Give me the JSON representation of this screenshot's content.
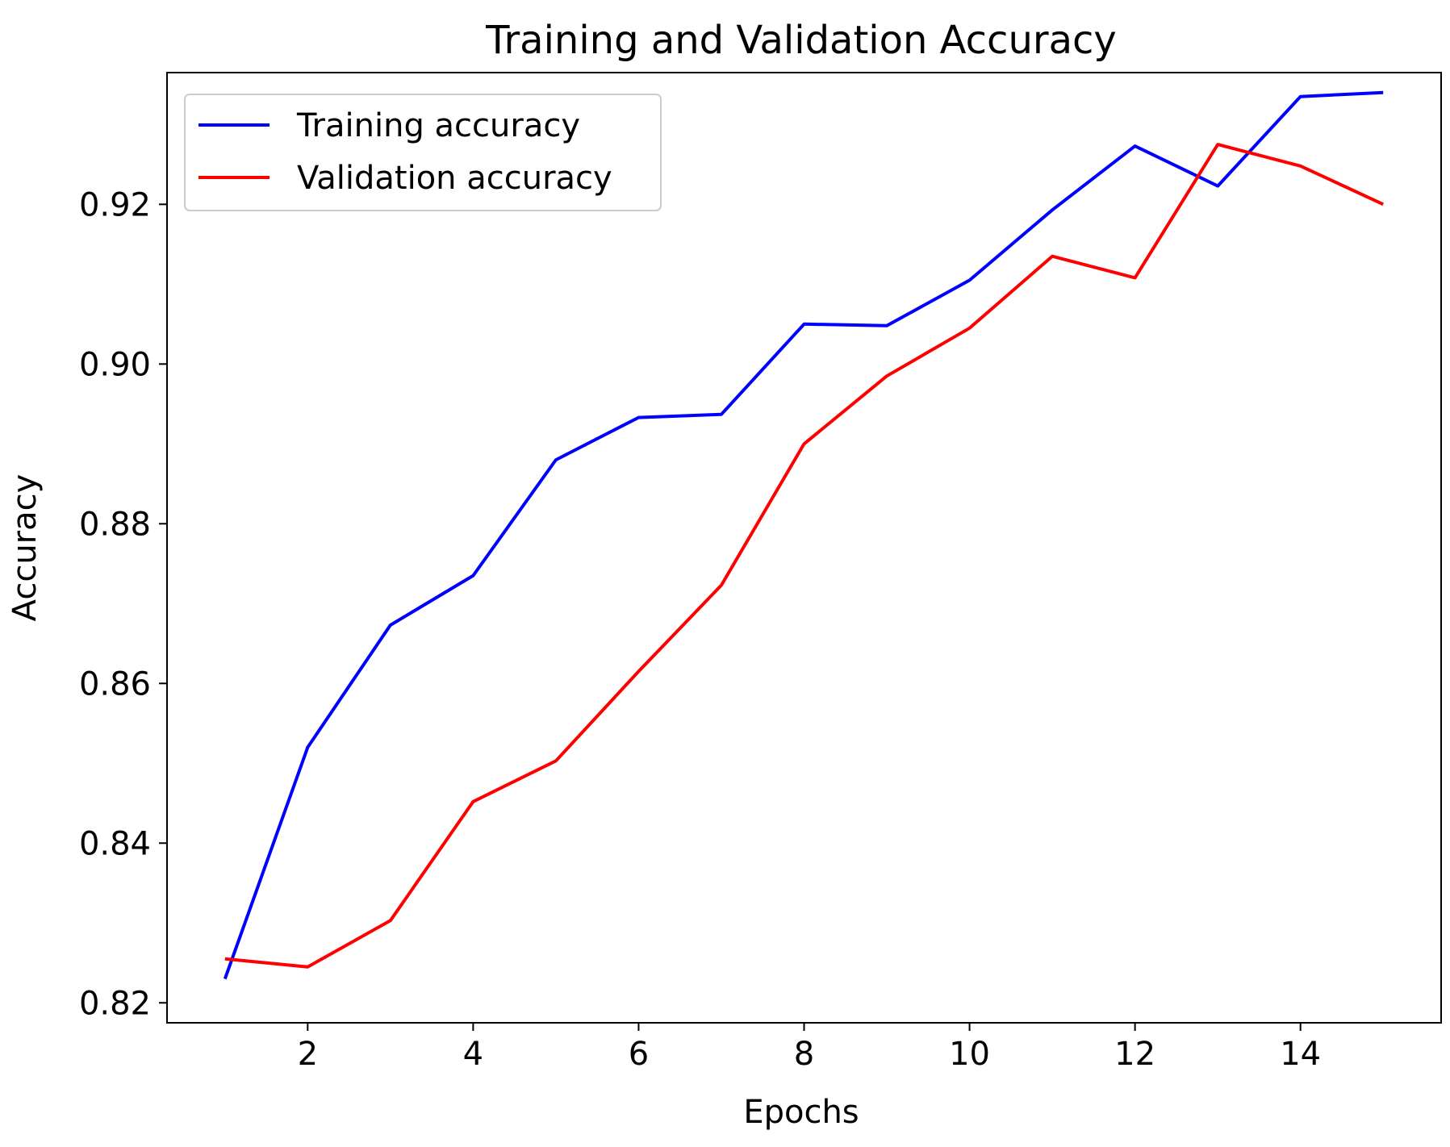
{
  "chart_data": {
    "type": "line",
    "title": "Training and Validation Accuracy",
    "xlabel": "Epochs",
    "ylabel": "Accuracy",
    "xlim": [
      0.3,
      15.7
    ],
    "ylim": [
      0.8175,
      0.9365
    ],
    "xticks": [
      2,
      4,
      6,
      8,
      10,
      12,
      14
    ],
    "xtick_labels": [
      "2",
      "4",
      "6",
      "8",
      "10",
      "12",
      "14"
    ],
    "yticks": [
      0.82,
      0.84,
      0.86,
      0.88,
      0.9,
      0.92
    ],
    "ytick_labels": [
      "0.82",
      "0.84",
      "0.86",
      "0.88",
      "0.90",
      "0.92"
    ],
    "grid": false,
    "legend_position": "top-left",
    "x": [
      1,
      2,
      3,
      4,
      5,
      6,
      7,
      8,
      9,
      10,
      11,
      12,
      13,
      14,
      15
    ],
    "series": [
      {
        "name": "Training accuracy",
        "color": "#0000ff",
        "values": [
          0.823,
          0.852,
          0.8673,
          0.8735,
          0.888,
          0.8933,
          0.8937,
          0.905,
          0.9048,
          0.9105,
          0.9193,
          0.9273,
          0.9223,
          0.9335,
          0.934
        ]
      },
      {
        "name": "Validation accuracy",
        "color": "#ff0000",
        "values": [
          0.8255,
          0.8245,
          0.8303,
          0.8452,
          0.8503,
          0.8615,
          0.8723,
          0.89,
          0.8985,
          0.9045,
          0.9135,
          0.9108,
          0.9275,
          0.9248,
          0.92
        ]
      }
    ]
  }
}
